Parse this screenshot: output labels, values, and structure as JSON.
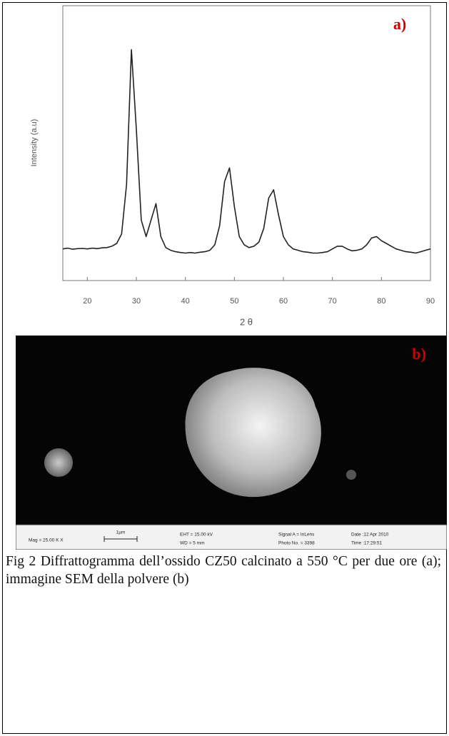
{
  "chart_data": {
    "type": "line",
    "annotation": "a)",
    "ylabel": "Intensity (a.u)",
    "xlabel": "2 θ",
    "x": [
      15,
      16,
      17,
      18,
      19,
      20,
      21,
      22,
      23,
      24,
      25,
      26,
      27,
      28,
      29,
      30,
      31,
      32,
      33,
      34,
      35,
      36,
      37,
      38,
      39,
      40,
      41,
      42,
      43,
      44,
      45,
      46,
      47,
      48,
      49,
      50,
      51,
      52,
      53,
      54,
      55,
      56,
      57,
      58,
      59,
      60,
      61,
      62,
      63,
      64,
      65,
      66,
      67,
      68,
      69,
      70,
      71,
      72,
      73,
      74,
      75,
      76,
      77,
      78,
      79,
      80,
      81,
      82,
      83,
      84,
      85,
      86,
      87,
      88,
      89,
      90
    ],
    "values": [
      11.5,
      11.8,
      11.4,
      11.6,
      11.7,
      11.5,
      11.8,
      11.6,
      11.9,
      12,
      12.5,
      13.5,
      17,
      35,
      84,
      55,
      22,
      16,
      22,
      28,
      16,
      12,
      11,
      10.5,
      10.2,
      10,
      10.2,
      10,
      10.3,
      10.5,
      11,
      13,
      20,
      36,
      41,
      27,
      16,
      13,
      12,
      12.5,
      14,
      19,
      30,
      33,
      24,
      16,
      13,
      11.5,
      11,
      10.5,
      10.3,
      10,
      10,
      10.2,
      10.5,
      11.5,
      12.5,
      12.5,
      11.5,
      10.8,
      11,
      11.5,
      13,
      15.5,
      16,
      14.5,
      13.5,
      12.5,
      11.5,
      11,
      10.5,
      10.3,
      10,
      10.5,
      11,
      11.5
    ],
    "color": "#222222",
    "xlim": [
      15,
      90
    ],
    "xticks": [
      20,
      30,
      40,
      50,
      60,
      70,
      80,
      90
    ],
    "ylim": [
      0,
      100
    ]
  },
  "sem_image": {
    "annotation": "b)",
    "mag": "Mag = 25.00 K X",
    "scale": "1µm",
    "eht": "EHT = 15.00 kV",
    "wd": "WD = 5 mm",
    "signal": "Signal A = InLens",
    "photo": "Photo No. = 3398",
    "date": "Date :12 Apr 2010",
    "time": "Time :17:29:51"
  },
  "caption": "Fig 2 Diffrattogramma dell’ossido CZ50 calcinato a 550 °C per due ore (a); immagine SEM della polvere (b)"
}
